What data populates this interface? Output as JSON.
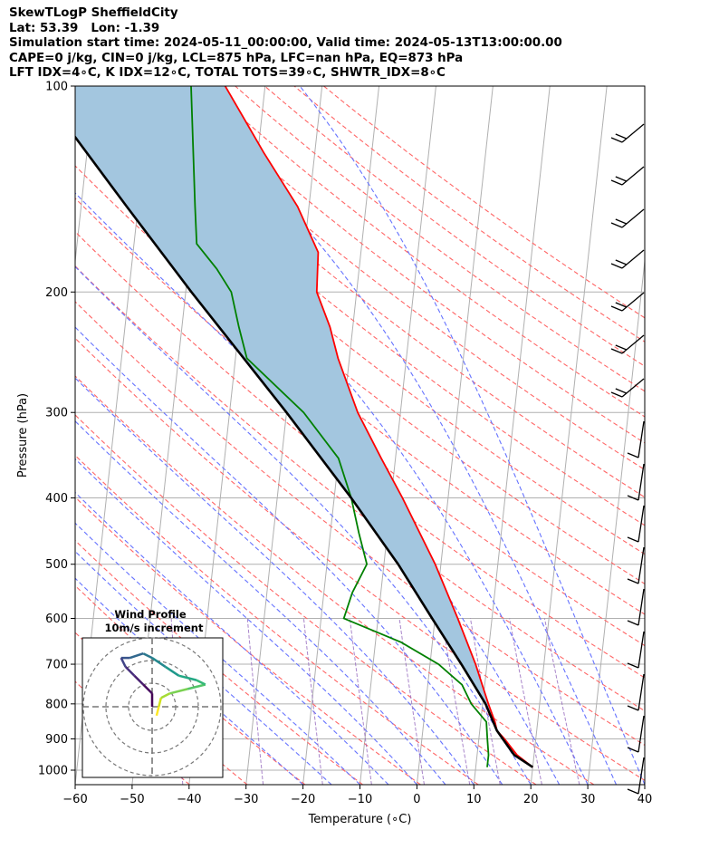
{
  "header": {
    "line1": "SkewTLogP SheffieldCity",
    "line2": "Lat: 53.39   Lon: -1.39",
    "line3": "Simulation start time: 2024-05-11_00:00:00, Valid time: 2024-05-13T13:00:00.00",
    "line4": "CAPE=0 j/kg, CIN=0 j/kg, LCL=875 hPa, LFC=nan hPa, EQ=873 hPa",
    "line5": "LFT IDX=4∘C, K IDX=12∘C, TOTAL TOTS=39∘C, SHWTR_IDX=8∘C"
  },
  "colors": {
    "temperature": "#ff0000",
    "dewpoint": "#008000",
    "parcel": "#000000",
    "shade": "#a3c6df",
    "dry_adiabat": "#ff6666",
    "moist_adiabat": "#6673ff",
    "mixing_ratio": "#9467bd",
    "isotherm_grid": "#b0b0b0"
  },
  "chart_data": {
    "type": "skewt",
    "xlabel": "Temperature (∘C)",
    "ylabel": "Pressure (hPa)",
    "xlim": [
      -60,
      40
    ],
    "ylim": [
      1050,
      100
    ],
    "xticks": [
      -60,
      -50,
      -40,
      -30,
      -20,
      -10,
      0,
      10,
      20,
      30,
      40
    ],
    "yticks": [
      1000,
      900,
      800,
      700,
      600,
      500,
      400,
      300,
      200,
      100
    ],
    "log_pressure": true,
    "grid": true,
    "temperature": [
      [
        990,
        20
      ],
      [
        950,
        17
      ],
      [
        900,
        14.5
      ],
      [
        875,
        13
      ],
      [
        850,
        12.5
      ],
      [
        800,
        11
      ],
      [
        700,
        8
      ],
      [
        600,
        4
      ],
      [
        500,
        -1
      ],
      [
        400,
        -8
      ],
      [
        350,
        -12.5
      ],
      [
        300,
        -17.5
      ],
      [
        250,
        -22
      ],
      [
        225,
        -24
      ],
      [
        200,
        -27
      ],
      [
        175,
        -27.5
      ],
      [
        150,
        -32
      ],
      [
        125,
        -39
      ],
      [
        100,
        -47
      ]
    ],
    "dewpoint": [
      [
        990,
        12
      ],
      [
        950,
        12
      ],
      [
        900,
        11.5
      ],
      [
        850,
        11
      ],
      [
        800,
        8
      ],
      [
        750,
        6
      ],
      [
        700,
        1.5
      ],
      [
        650,
        -5.5
      ],
      [
        600,
        -16
      ],
      [
        550,
        -15
      ],
      [
        500,
        -13
      ],
      [
        450,
        -15
      ],
      [
        400,
        -17
      ],
      [
        350,
        -20
      ],
      [
        300,
        -27
      ],
      [
        250,
        -38
      ],
      [
        225,
        -40
      ],
      [
        200,
        -42
      ],
      [
        185,
        -45
      ],
      [
        170,
        -49
      ],
      [
        150,
        -50
      ],
      [
        100,
        -53
      ]
    ],
    "parcel": [
      [
        990,
        20
      ],
      [
        950,
        16.5
      ],
      [
        900,
        14.2
      ],
      [
        875,
        13
      ],
      [
        800,
        10.5
      ],
      [
        700,
        5.5
      ],
      [
        600,
        -0.5
      ],
      [
        500,
        -7.5
      ],
      [
        400,
        -17
      ],
      [
        300,
        -30
      ],
      [
        200,
        -49
      ],
      [
        150,
        -62
      ],
      [
        100,
        -80
      ]
    ],
    "wind_profile": {
      "title": "Wind Profile",
      "subtitle": "10m/s increment",
      "hodograph": [
        [
          1,
          -2
        ],
        [
          1.5,
          0
        ],
        [
          2,
          2
        ],
        [
          4,
          3
        ],
        [
          8,
          4
        ],
        [
          12,
          5
        ],
        [
          10,
          6
        ],
        [
          6,
          7
        ],
        [
          3,
          9
        ],
        [
          0,
          11
        ],
        [
          -2,
          12
        ],
        [
          -5,
          11
        ],
        [
          -7,
          11
        ],
        [
          -6,
          9
        ],
        [
          -4,
          7
        ],
        [
          -2,
          5
        ],
        [
          0,
          3
        ],
        [
          0,
          0
        ]
      ]
    }
  }
}
